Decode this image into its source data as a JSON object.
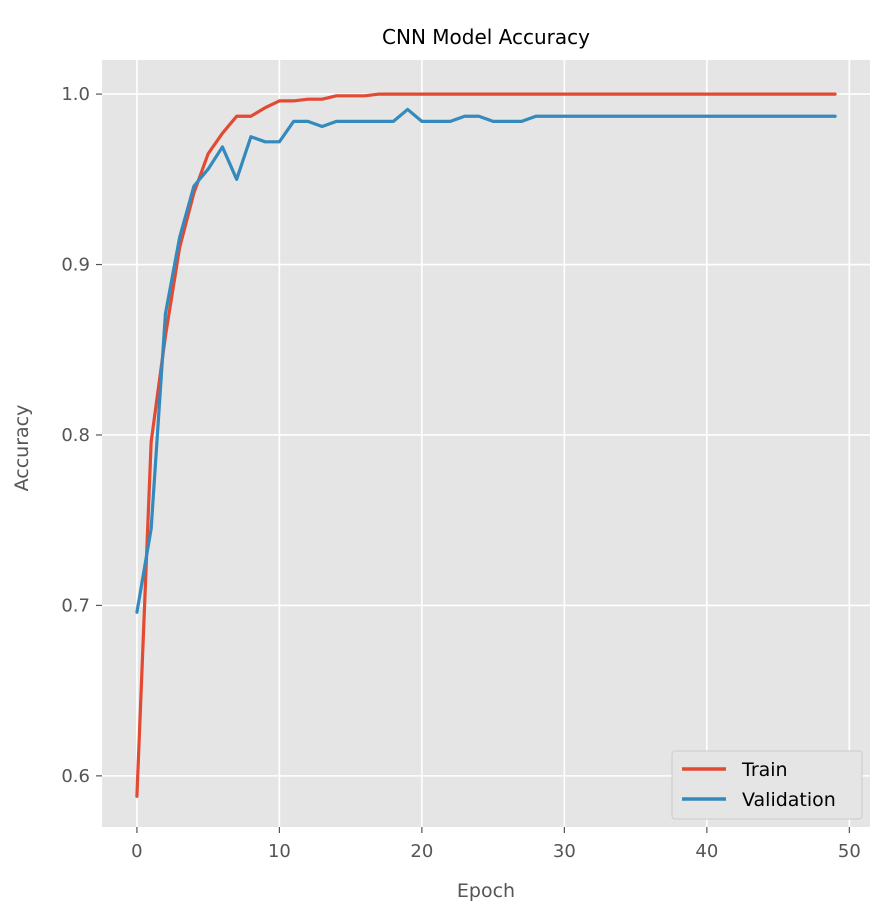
{
  "chart_data": {
    "type": "line",
    "title": "CNN Model Accuracy",
    "xlabel": "Epoch",
    "ylabel": "Accuracy",
    "xlim": [
      -2.45,
      51.45
    ],
    "ylim": [
      0.57,
      1.02
    ],
    "xticks": [
      0,
      10,
      20,
      30,
      40,
      50
    ],
    "xtick_labels": [
      "0",
      "10",
      "20",
      "30",
      "40",
      "50"
    ],
    "yticks": [
      0.6,
      0.7,
      0.8,
      0.9,
      1.0
    ],
    "ytick_labels": [
      "0.6",
      "0.7",
      "0.8",
      "0.9",
      "1.0"
    ],
    "grid": true,
    "legend_position": "lower-right",
    "x": [
      0,
      1,
      2,
      3,
      4,
      5,
      6,
      7,
      8,
      9,
      10,
      11,
      12,
      13,
      14,
      15,
      16,
      17,
      18,
      19,
      20,
      21,
      22,
      23,
      24,
      25,
      26,
      27,
      28,
      29,
      30,
      31,
      32,
      33,
      34,
      35,
      36,
      37,
      38,
      39,
      40,
      41,
      42,
      43,
      44,
      45,
      46,
      47,
      48,
      49
    ],
    "series": [
      {
        "name": "Train",
        "color": "#e24a33",
        "values": [
          0.588,
          0.796,
          0.858,
          0.91,
          0.942,
          0.965,
          0.977,
          0.987,
          0.987,
          0.992,
          0.996,
          0.996,
          0.997,
          0.997,
          0.999,
          0.999,
          0.999,
          1.0,
          1.0,
          1.0,
          1.0,
          1.0,
          1.0,
          1.0,
          1.0,
          1.0,
          1.0,
          1.0,
          1.0,
          1.0,
          1.0,
          1.0,
          1.0,
          1.0,
          1.0,
          1.0,
          1.0,
          1.0,
          1.0,
          1.0,
          1.0,
          1.0,
          1.0,
          1.0,
          1.0,
          1.0,
          1.0,
          1.0,
          1.0,
          1.0
        ]
      },
      {
        "name": "Validation",
        "color": "#348abd",
        "values": [
          0.696,
          0.745,
          0.871,
          0.916,
          0.946,
          0.956,
          0.969,
          0.95,
          0.975,
          0.972,
          0.972,
          0.984,
          0.984,
          0.981,
          0.984,
          0.984,
          0.984,
          0.984,
          0.984,
          0.991,
          0.984,
          0.984,
          0.984,
          0.987,
          0.987,
          0.984,
          0.984,
          0.984,
          0.987,
          0.987,
          0.987,
          0.987,
          0.987,
          0.987,
          0.987,
          0.987,
          0.987,
          0.987,
          0.987,
          0.987,
          0.987,
          0.987,
          0.987,
          0.987,
          0.987,
          0.987,
          0.987,
          0.987,
          0.987,
          0.987
        ]
      }
    ]
  },
  "colors": {
    "plot_background": "#e5e5e5",
    "grid": "#ffffff",
    "tick_label": "#555555"
  }
}
